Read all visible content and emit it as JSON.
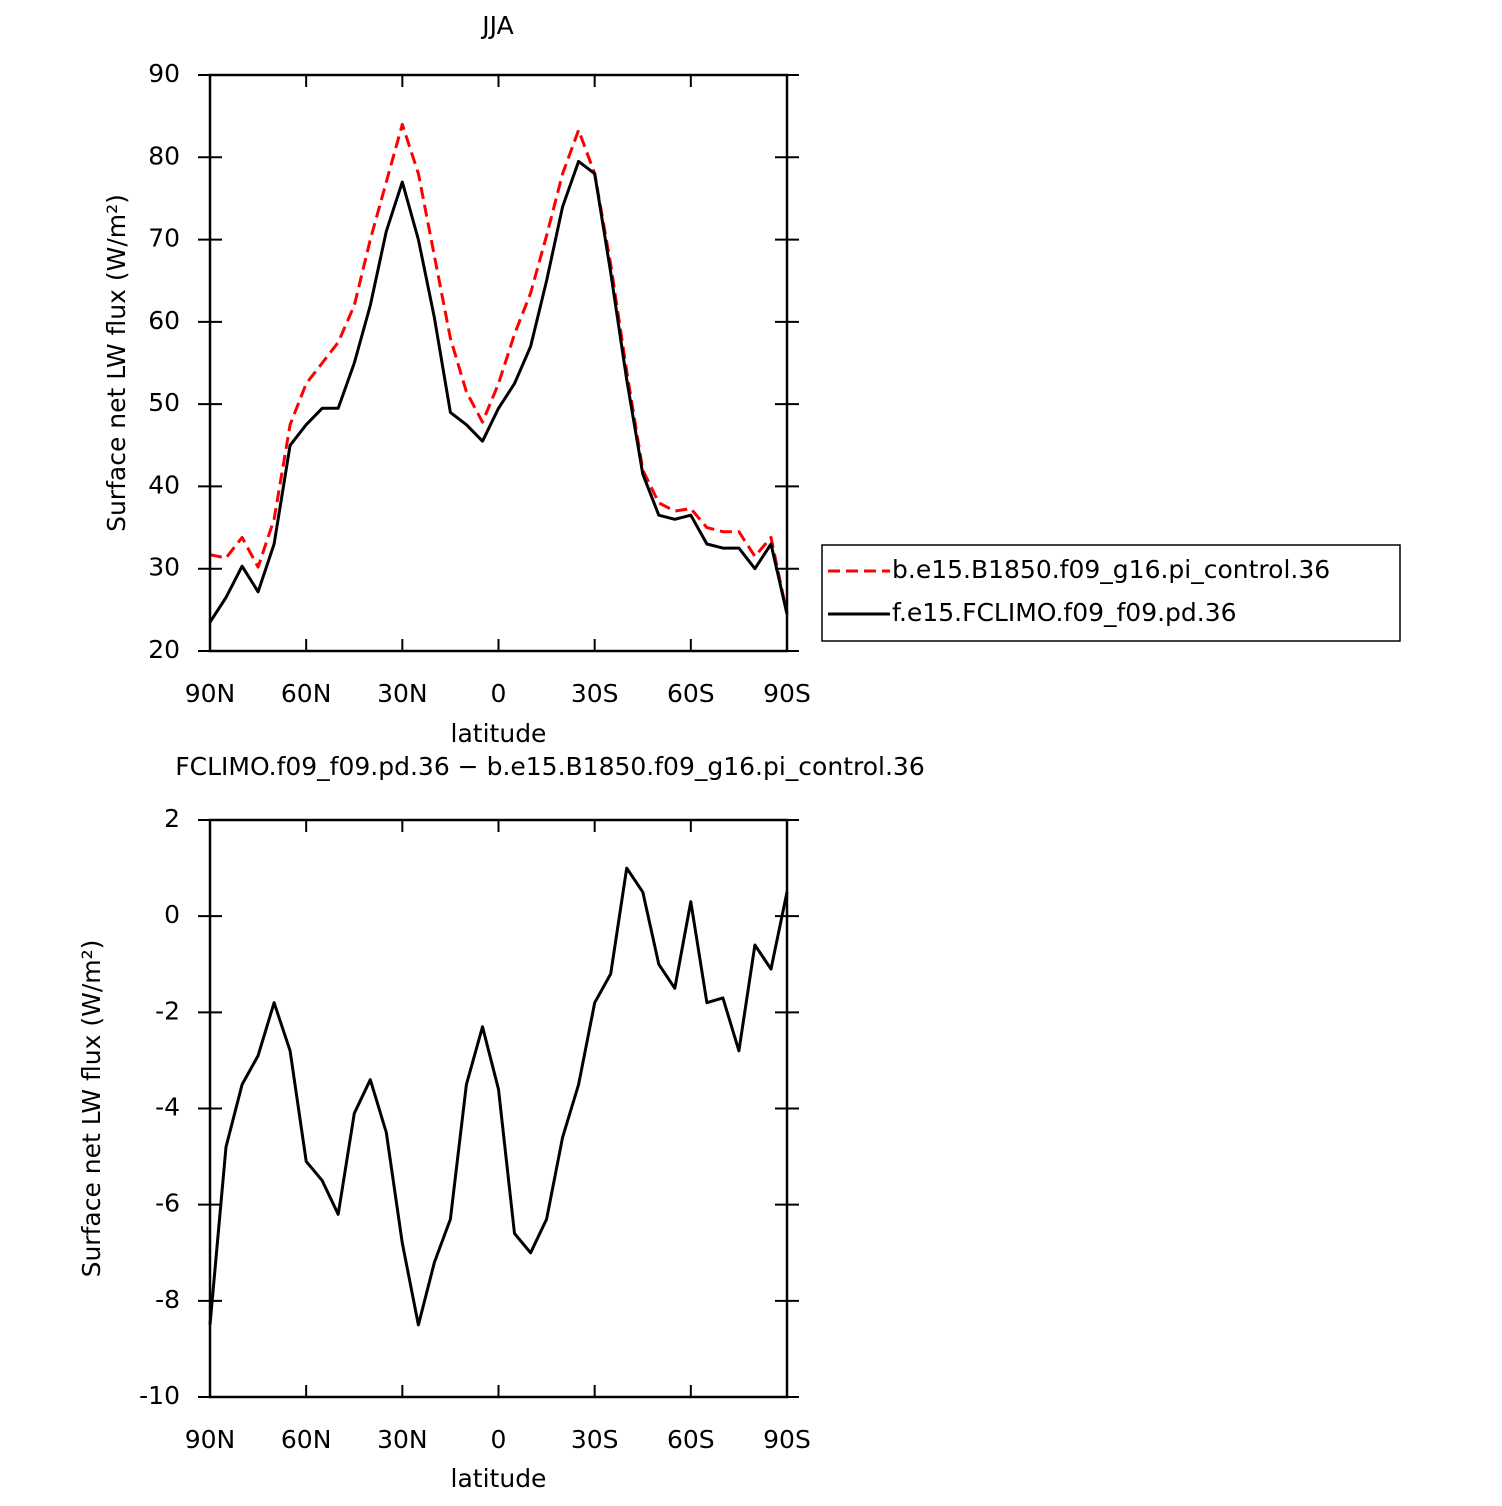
{
  "chart_data": [
    {
      "type": "line",
      "title": "JJA",
      "xlabel": "latitude",
      "ylabel": "Surface net LW flux (W/m²)",
      "x": [
        90,
        85,
        80,
        75,
        70,
        65,
        60,
        55,
        50,
        45,
        40,
        35,
        30,
        25,
        20,
        15,
        10,
        5,
        0,
        -5,
        -10,
        -15,
        -20,
        -25,
        -30,
        -35,
        -40,
        -45,
        -50,
        -55,
        -60,
        -65,
        -70,
        -75,
        -80,
        -85,
        -90
      ],
      "series": [
        {
          "name": "b.e15.B1850.f09_g16.pi_control.36",
          "color": "#ff0000",
          "style": "dashed",
          "values": [
            31.7,
            31.3,
            33.8,
            30.2,
            36,
            47.5,
            52.5,
            55,
            57.5,
            62,
            70,
            77,
            84,
            78,
            68,
            58,
            51.5,
            47.8,
            52.5,
            58.5,
            63.5,
            70.5,
            78,
            83.3,
            78,
            67,
            54,
            42,
            38,
            37,
            37.3,
            35,
            34.5,
            34.5,
            31.5,
            33.8,
            24.5
          ]
        },
        {
          "name": "f.e15.FCLIMO.f09_f09.pd.36",
          "color": "#000000",
          "style": "solid",
          "values": [
            23.5,
            26.5,
            30.3,
            27.2,
            33,
            45,
            47.5,
            49.5,
            49.5,
            55,
            62,
            71,
            77,
            70,
            60.5,
            49,
            47.5,
            45.5,
            49.5,
            52.5,
            57,
            65,
            74,
            79.5,
            78,
            66,
            53,
            41.5,
            36.5,
            36,
            36.5,
            33,
            32.5,
            32.5,
            30,
            33,
            24.5
          ]
        }
      ],
      "xlim": [
        90,
        -90
      ],
      "ylim": [
        20,
        90
      ],
      "xticks": [
        {
          "value": 90,
          "label": "90N"
        },
        {
          "value": 60,
          "label": "60N"
        },
        {
          "value": 30,
          "label": "30N"
        },
        0,
        {
          "value": -30,
          "label": "30S"
        },
        {
          "value": -60,
          "label": "60S"
        },
        {
          "value": -90,
          "label": "90S"
        }
      ],
      "yticks": [
        20,
        30,
        40,
        50,
        60,
        70,
        80,
        90
      ],
      "legend": "right"
    },
    {
      "type": "line",
      "title": "FCLIMO.f09_f09.pd.36 − b.e15.B1850.f09_g16.pi_control.36",
      "xlabel": "latitude",
      "ylabel": "Surface net LW flux (W/m²)",
      "x": [
        90,
        85,
        80,
        75,
        70,
        65,
        60,
        55,
        50,
        45,
        40,
        35,
        30,
        25,
        20,
        15,
        10,
        5,
        0,
        -5,
        -10,
        -15,
        -20,
        -25,
        -30,
        -35,
        -40,
        -45,
        -50,
        -55,
        -60,
        -65,
        -70,
        -75,
        -80,
        -85,
        -90
      ],
      "series": [
        {
          "color": "#000000",
          "style": "solid",
          "values": [
            -8.5,
            -4.8,
            -3.5,
            -2.9,
            -1.8,
            -2.8,
            -5.1,
            -5.5,
            -6.2,
            -4.1,
            -3.4,
            -4.5,
            -6.8,
            -8.5,
            -7.2,
            -6.3,
            -3.5,
            -2.3,
            -3.6,
            -6.6,
            -7.0,
            -6.3,
            -4.6,
            -3.5,
            -1.8,
            -1.2,
            1.0,
            0.5,
            -1.0,
            -1.5,
            0.3,
            -1.8,
            -1.7,
            -2.8,
            -0.6,
            -1.1,
            0.5
          ]
        }
      ],
      "xlim": [
        90,
        -90
      ],
      "ylim": [
        -10,
        2
      ],
      "xticks": [
        {
          "value": 90,
          "label": "90N"
        },
        {
          "value": 60,
          "label": "60N"
        },
        {
          "value": 30,
          "label": "30N"
        },
        0,
        {
          "value": -30,
          "label": "30S"
        },
        {
          "value": -60,
          "label": "60S"
        },
        {
          "value": -90,
          "label": "90S"
        }
      ],
      "yticks": [
        -10,
        -8,
        -6,
        -4,
        -2,
        0,
        2
      ]
    }
  ]
}
